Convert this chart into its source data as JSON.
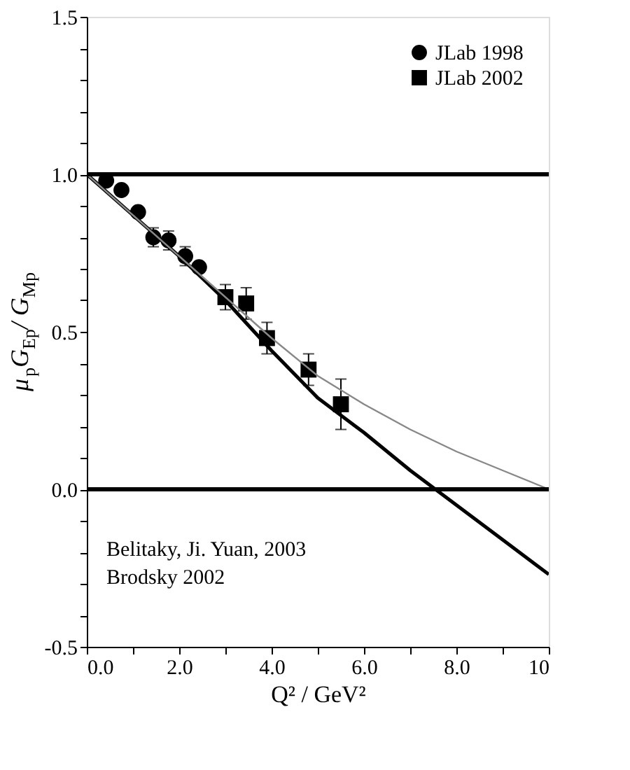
{
  "chart_data": {
    "type": "scatter",
    "xlabel": "Q² / GeV²",
    "ylabel": "μ$_{p}$G$_{Ep}$/ G$_{Mp}$",
    "xlim": [
      0,
      10
    ],
    "ylim": [
      -0.5,
      1.5
    ],
    "xticks": [
      {
        "value": 0,
        "label": "0.0"
      },
      {
        "value": 1,
        "label": null
      },
      {
        "value": 2,
        "label": "2.0"
      },
      {
        "value": 3,
        "label": null
      },
      {
        "value": 4,
        "label": "4.0"
      },
      {
        "value": 5,
        "label": null
      },
      {
        "value": 6,
        "label": "6.0"
      },
      {
        "value": 7,
        "label": null
      },
      {
        "value": 8,
        "label": "8.0"
      },
      {
        "value": 9,
        "label": null
      },
      10
    ],
    "yticks": [
      {
        "value": -0.5,
        "label": "-0.5"
      },
      {
        "value": -0.4,
        "label": null
      },
      {
        "value": -0.3,
        "label": null
      },
      {
        "value": -0.2,
        "label": null
      },
      {
        "value": -0.1,
        "label": null
      },
      {
        "value": 0,
        "label": "0.0"
      },
      {
        "value": 0.1,
        "label": null
      },
      {
        "value": 0.2,
        "label": null
      },
      {
        "value": 0.3,
        "label": null
      },
      {
        "value": 0.4,
        "label": null
      },
      {
        "value": 0.5,
        "label": "0.5"
      },
      {
        "value": 0.6,
        "label": null
      },
      {
        "value": 0.7,
        "label": null
      },
      {
        "value": 0.8,
        "label": null
      },
      {
        "value": 0.9,
        "label": null
      },
      {
        "value": 1,
        "label": "1.0"
      },
      {
        "value": 1.1,
        "label": null
      },
      {
        "value": 1.2,
        "label": null
      },
      {
        "value": 1.3,
        "label": null
      },
      {
        "value": 1.4,
        "label": null
      },
      {
        "value": 1.5,
        "label": "1.5"
      }
    ],
    "grid": false,
    "legend": "top right",
    "series": [
      {
        "name": "JLab 1998",
        "type": "scatter",
        "marker": "circle",
        "color": "#000000",
        "x": [
          0.42,
          0.75,
          1.11,
          1.44,
          1.77,
          2.13,
          2.43
        ],
        "values": [
          0.98,
          0.95,
          0.88,
          0.8,
          0.79,
          0.74,
          0.705
        ],
        "errors": [
          null,
          null,
          null,
          0.03,
          0.03,
          0.03,
          null
        ]
      },
      {
        "name": "JLab 2002",
        "type": "scatter",
        "marker": "square",
        "color": "#000000",
        "x": [
          3.0,
          3.45,
          3.9,
          4.8,
          5.5
        ],
        "values": [
          0.61,
          0.59,
          0.48,
          0.38,
          0.27
        ],
        "errors": [
          0.04,
          0.05,
          0.05,
          0.05,
          0.08
        ]
      },
      {
        "type": "line",
        "color": "#000000",
        "line_style": "solid",
        "x": [
          0,
          1,
          2,
          3,
          4,
          5,
          6,
          7,
          8,
          9,
          10
        ],
        "values": [
          1,
          0.87,
          0.74,
          0.6,
          0.44,
          0.29,
          0.18,
          0.06,
          -0.05,
          -0.16,
          -0.27
        ]
      },
      {
        "type": "line",
        "color": "#888888",
        "line_style": "solid",
        "x": [
          0,
          1,
          2,
          3,
          4,
          5,
          6,
          7,
          7.5,
          8,
          9,
          10
        ],
        "values": [
          1,
          0.87,
          0.74,
          0.61,
          0.48,
          0.36,
          0.27,
          0.19,
          0.155,
          0.12,
          0.06,
          0
        ]
      }
    ],
    "ref_lines": [
      {
        "axis": "y",
        "value": 1.0,
        "color": "#000000"
      },
      {
        "axis": "y",
        "value": 0.0,
        "color": "#000000"
      }
    ],
    "annotations": [
      "Belitaky, Ji. Yuan, 2003",
      "Brodsky 2002"
    ]
  }
}
